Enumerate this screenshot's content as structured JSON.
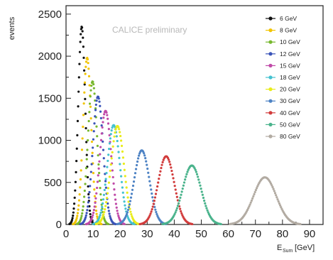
{
  "chart_data": {
    "type": "scatter",
    "title": "",
    "annotation": "CALICE preliminary",
    "xlabel_main": "E",
    "xlabel_sub": "Sum",
    "xlabel_unit": "[GeV]",
    "ylabel": "events",
    "xlim": [
      0,
      95
    ],
    "ylim": [
      0,
      2600
    ],
    "xticks": [
      0,
      10,
      20,
      30,
      40,
      50,
      60,
      70,
      80,
      90
    ],
    "yticks": [
      0,
      500,
      1000,
      1500,
      2000,
      2500
    ],
    "grid": false,
    "legend_position": "top-right",
    "series": [
      {
        "name": "6 GeV",
        "color": "#111111",
        "peak_x": 5.8,
        "peak_y": 2350,
        "sigma": 1.3
      },
      {
        "name": "8 GeV",
        "color": "#f2c400",
        "peak_x": 7.8,
        "peak_y": 1980,
        "sigma": 1.5
      },
      {
        "name": "10 GeV",
        "color": "#77b82e",
        "peak_x": 9.8,
        "peak_y": 1700,
        "sigma": 1.7
      },
      {
        "name": "12 GeV",
        "color": "#3a54b8",
        "peak_x": 11.8,
        "peak_y": 1520,
        "sigma": 1.9
      },
      {
        "name": "15 GeV",
        "color": "#c04aa8",
        "peak_x": 14.6,
        "peak_y": 1350,
        "sigma": 2.1
      },
      {
        "name": "18 GeV",
        "color": "#44c2d0",
        "peak_x": 17.6,
        "peak_y": 1180,
        "sigma": 2.3
      },
      {
        "name": "20 GeV",
        "color": "#e9ec1a",
        "peak_x": 19.0,
        "peak_y": 1170,
        "sigma": 2.4
      },
      {
        "name": "30 GeV",
        "color": "#4e83c4",
        "peak_x": 28.0,
        "peak_y": 880,
        "sigma": 2.8
      },
      {
        "name": "40 GeV",
        "color": "#d23c3c",
        "peak_x": 37.0,
        "peak_y": 810,
        "sigma": 3.0
      },
      {
        "name": "50 GeV",
        "color": "#4ab38c",
        "peak_x": 46.5,
        "peak_y": 700,
        "sigma": 3.4
      },
      {
        "name": "80 GeV",
        "color": "#b2aba2",
        "peak_x": 73.5,
        "peak_y": 560,
        "sigma": 4.2
      }
    ]
  }
}
